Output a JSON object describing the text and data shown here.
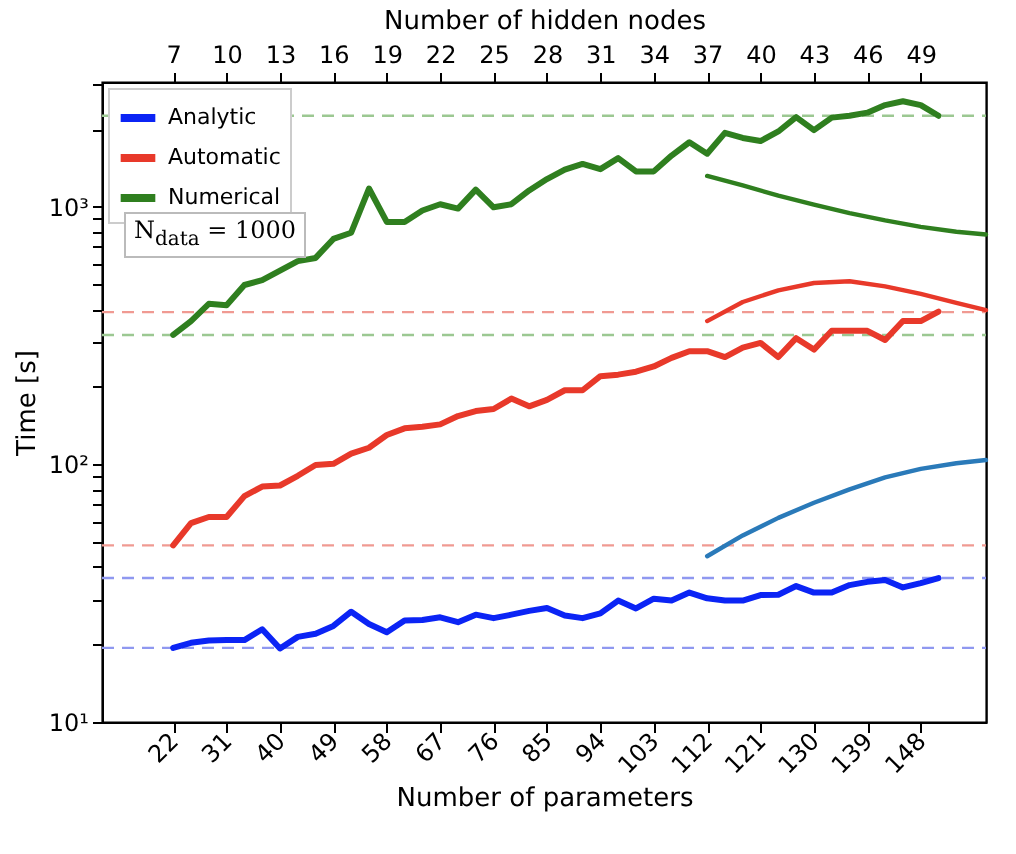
{
  "chart_data": {
    "type": "line",
    "xlabel": "Number of parameters",
    "x2label": "Number of hidden nodes",
    "ylabel": "Time [s]",
    "log": "y",
    "legend": "top left",
    "line_style": "solid",
    "xlim": [
      10,
      159
    ],
    "xticks": [
      22,
      31,
      40,
      49,
      58,
      67,
      76,
      85,
      94,
      103,
      112,
      121,
      130,
      139,
      148
    ],
    "x2lim": [
      3,
      52.67
    ],
    "x2ticks": [
      7,
      10,
      13,
      16,
      19,
      22,
      25,
      28,
      31,
      34,
      37,
      40,
      43,
      46,
      49
    ],
    "ylim": [
      10,
      3050
    ],
    "yticks": [
      {
        "value": 10,
        "label": "10¹"
      },
      {
        "value": 20,
        "label": null
      },
      {
        "value": 30,
        "label": null
      },
      {
        "value": 40,
        "label": null
      },
      {
        "value": 50,
        "label": null
      },
      {
        "value": 60,
        "label": null
      },
      {
        "value": 70,
        "label": null
      },
      {
        "value": 80,
        "label": null
      },
      {
        "value": 90,
        "label": null
      },
      {
        "value": 100,
        "label": "10²"
      },
      {
        "value": 200,
        "label": null
      },
      {
        "value": 300,
        "label": null
      },
      {
        "value": 400,
        "label": null
      },
      {
        "value": 500,
        "label": null
      },
      {
        "value": 600,
        "label": null
      },
      {
        "value": 700,
        "label": null
      },
      {
        "value": 800,
        "label": null
      },
      {
        "value": 900,
        "label": null
      },
      {
        "value": 1000,
        "label": "10³"
      },
      {
        "value": 2000,
        "label": null
      },
      {
        "value": 3000,
        "label": null
      }
    ],
    "annotations": [
      "N$_{data}$ = 1000"
    ],
    "series": [
      {
        "name": "Analytic",
        "color": "#0b24f5",
        "x": [
          22,
          25,
          28,
          31,
          34,
          37,
          40,
          43,
          46,
          49,
          52,
          55,
          58,
          61,
          64,
          67,
          70,
          73,
          76,
          79,
          82,
          85,
          88,
          91,
          94,
          97,
          100,
          103,
          106,
          109,
          112,
          115,
          118,
          121,
          124,
          127,
          130,
          133,
          136,
          139,
          142,
          145,
          148,
          151
        ],
        "values": [
          19.4,
          20.3,
          20.7,
          20.8,
          20.8,
          22.9,
          19.3,
          21.4,
          22.0,
          23.6,
          26.8,
          24.0,
          22.3,
          24.8,
          24.9,
          25.5,
          24.4,
          26.1,
          25.3,
          26.1,
          27.0,
          27.7,
          25.9,
          25.3,
          26.4,
          29.6,
          27.6,
          30.1,
          29.6,
          31.8,
          30.2,
          29.6,
          29.6,
          31.1,
          31.2,
          33.7,
          31.8,
          31.8,
          34.0,
          35.0,
          35.6,
          33.3,
          34.6,
          36.2
        ]
      },
      {
        "name": "Automatic",
        "color": "#e8392a",
        "x": [
          22,
          25,
          28,
          31,
          34,
          37,
          40,
          43,
          46,
          49,
          52,
          55,
          58,
          61,
          64,
          67,
          70,
          73,
          76,
          79,
          82,
          85,
          88,
          91,
          94,
          97,
          100,
          103,
          106,
          109,
          112,
          115,
          118,
          121,
          124,
          127,
          130,
          133,
          136,
          139,
          142,
          145,
          148,
          151
        ],
        "values": [
          48.5,
          59.2,
          62.5,
          62.5,
          75.3,
          82.0,
          82.8,
          90.3,
          99.5,
          100.5,
          110,
          116,
          130,
          138,
          140,
          143,
          154,
          161,
          164,
          180,
          168,
          178,
          194,
          194,
          220,
          223,
          229,
          240,
          259,
          275,
          275,
          261,
          284,
          296,
          261,
          309,
          279,
          330,
          330,
          330,
          304,
          360,
          360,
          392
        ]
      },
      {
        "name": "Numerical",
        "color": "#2f7f1f",
        "x": [
          22,
          25,
          28,
          31,
          34,
          37,
          40,
          43,
          46,
          49,
          52,
          55,
          58,
          61,
          64,
          67,
          70,
          73,
          76,
          79,
          82,
          85,
          88,
          91,
          94,
          97,
          100,
          103,
          106,
          109,
          112,
          115,
          118,
          121,
          124,
          127,
          130,
          133,
          136,
          139,
          142,
          145,
          148,
          151
        ],
        "values": [
          318,
          360,
          420,
          415,
          497,
          519,
          565,
          615,
          633,
          750,
          793,
          1177,
          873,
          873,
          967,
          1023,
          984,
          1165,
          995,
          1023,
          1157,
          1281,
          1394,
          1467,
          1400,
          1545,
          1372,
          1372,
          1580,
          1780,
          1606,
          1936,
          1850,
          1799,
          1960,
          2228,
          1983,
          2218,
          2256,
          2319,
          2481,
          2567,
          2481,
          2256
        ]
      },
      {
        "color": "#2a7ab9",
        "x": [
          112,
          118,
          124,
          130,
          136,
          142,
          148,
          154,
          159
        ],
        "values": [
          44,
          53,
          62,
          71,
          80,
          89,
          96,
          101,
          104
        ]
      },
      {
        "color": "#e8392a",
        "x": [
          112,
          118,
          124,
          130,
          136,
          142,
          148,
          154,
          159
        ],
        "values": [
          360,
          427,
          474,
          506,
          514,
          491,
          459,
          424,
          397
        ]
      },
      {
        "color": "#2f7f1f",
        "x": [
          112,
          118,
          124,
          130,
          136,
          142,
          148,
          154,
          159
        ],
        "values": [
          1318,
          1210,
          1105,
          1020,
          945,
          885,
          835,
          800,
          780
        ]
      }
    ],
    "ref_lines": [
      {
        "axis": "y",
        "value": 19.4,
        "color": "#8f98f0",
        "line_style": "dashed"
      },
      {
        "axis": "y",
        "value": 36.2,
        "color": "#8f98f0",
        "line_style": "dashed"
      },
      {
        "axis": "y",
        "value": 48.5,
        "color": "#f09a92",
        "line_style": "dashed"
      },
      {
        "axis": "y",
        "value": 390,
        "color": "#f09a92",
        "line_style": "dashed"
      },
      {
        "axis": "y",
        "value": 318,
        "color": "#9cc892",
        "line_style": "dashed"
      },
      {
        "axis": "y",
        "value": 2256,
        "color": "#9cc892",
        "line_style": "dashed"
      }
    ]
  }
}
